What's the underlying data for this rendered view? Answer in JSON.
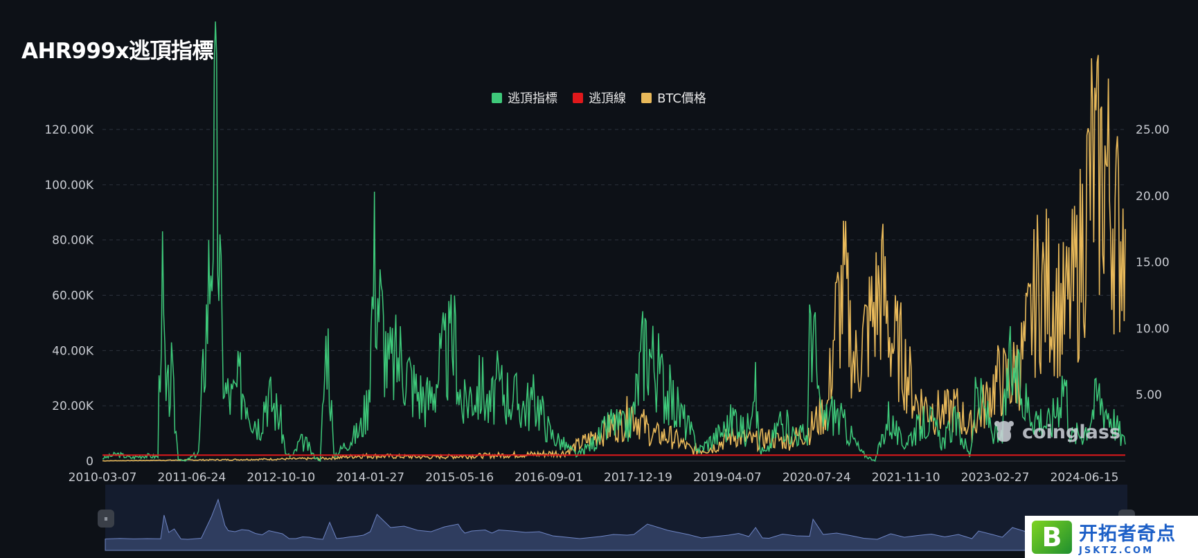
{
  "chart_data": {
    "type": "line",
    "title": "AHR999x逃頂指標",
    "legend": [
      {
        "name": "逃頂指標",
        "color": "#3ec97a"
      },
      {
        "name": "逃頂線",
        "color": "#e0181b"
      },
      {
        "name": "BTC價格",
        "color": "#e8b95a"
      }
    ],
    "legend_position": "top-center",
    "x_tick_labels": [
      "2010-03-07",
      "2011-06-24",
      "2012-10-10",
      "2014-01-27",
      "2015-05-16",
      "2016-09-01",
      "2017-12-19",
      "2019-04-07",
      "2020-07-24",
      "2021-11-10",
      "2023-02-27",
      "2024-06-15"
    ],
    "y_left_ticks": [
      "0",
      "20.00K",
      "40.00K",
      "60.00K",
      "80.00K",
      "100.00K",
      "120.00K"
    ],
    "y_left_range": [
      0,
      120000
    ],
    "y_right_ticks": [
      "5.00",
      "10.00",
      "15.00",
      "20.00",
      "25.00"
    ],
    "y_right_range": [
      0,
      25
    ],
    "grid": "horizontal-dashed",
    "x_range_years": [
      2010.18,
      2025.3
    ],
    "series": [
      {
        "name": "逃頂指標",
        "color": "#3ec97a",
        "x": [
          2010.18,
          2010.4,
          2010.6,
          2010.8,
          2011.0,
          2011.05,
          2011.12,
          2011.2,
          2011.3,
          2011.4,
          2011.5,
          2011.6,
          2011.75,
          2011.85,
          2011.95,
          2012.0,
          2012.1,
          2012.2,
          2012.3,
          2012.4,
          2012.5,
          2012.6,
          2012.8,
          2012.9,
          2013.0,
          2013.1,
          2013.2,
          2013.3,
          2013.4,
          2013.5,
          2013.6,
          2013.7,
          2013.8,
          2013.9,
          2014.0,
          2014.05,
          2014.1,
          2014.2,
          2014.4,
          2014.6,
          2014.8,
          2015.0,
          2015.2,
          2015.4,
          2015.45,
          2015.5,
          2015.6,
          2015.8,
          2015.9,
          2016.0,
          2016.2,
          2016.4,
          2016.6,
          2016.8,
          2017.0,
          2017.2,
          2017.5,
          2017.7,
          2017.9,
          2018.0,
          2018.2,
          2018.5,
          2018.8,
          2019.0,
          2019.2,
          2019.4,
          2019.55,
          2019.7,
          2019.8,
          2019.9,
          2020.0,
          2020.2,
          2020.4,
          2020.6,
          2020.65,
          2020.8,
          2021.0,
          2021.2,
          2021.4,
          2021.6,
          2021.8,
          2022.0,
          2022.2,
          2022.4,
          2022.6,
          2022.8,
          2023.0,
          2023.1,
          2023.3,
          2023.45,
          2023.6,
          2023.8,
          2024.0,
          2024.2,
          2024.4,
          2024.5,
          2024.7,
          2024.9,
          2025.1,
          2025.3
        ],
        "values": [
          1000,
          2500,
          1200,
          2000,
          1500,
          70000,
          20000,
          30000,
          1000,
          0,
          1500,
          3000,
          65000,
          115000,
          40000,
          25000,
          22000,
          28000,
          26000,
          17000,
          13000,
          25000,
          16000,
          2000,
          2000,
          7000,
          6000,
          2000,
          0,
          49000,
          2000,
          4000,
          7000,
          9000,
          12000,
          17000,
          22000,
          72000,
          34000,
          38000,
          26000,
          22000,
          36000,
          44000,
          28000,
          18000,
          24000,
          27000,
          18000,
          27000,
          24000,
          20000,
          22000,
          10000,
          6000,
          2000,
          8000,
          14000,
          12000,
          14000,
          44000,
          26000,
          14000,
          4000,
          8000,
          12000,
          17000,
          8000,
          34000,
          4000,
          3000,
          15000,
          10000,
          9000,
          58000,
          14000,
          18000,
          11000,
          3000,
          0,
          16000,
          6000,
          11000,
          15000,
          7000,
          14000,
          2000,
          24000,
          14000,
          6000,
          34000,
          22000,
          16000,
          13000,
          31000,
          9000,
          11000,
          24000,
          16000,
          6000
        ],
        "axis": "left"
      },
      {
        "name": "逃頂線",
        "color": "#e0181b",
        "x": [
          2010.18,
          2025.3
        ],
        "values": [
          0.45,
          0.45
        ],
        "axis": "right"
      },
      {
        "name": "BTC價格",
        "color": "#e8b95a",
        "x": [
          2010.18,
          2012.0,
          2013.5,
          2014.0,
          2015.0,
          2016.5,
          2017.0,
          2017.5,
          2017.9,
          2018.0,
          2018.3,
          2018.6,
          2018.9,
          2019.2,
          2019.5,
          2019.8,
          2020.0,
          2020.3,
          2020.6,
          2020.9,
          2021.0,
          2021.15,
          2021.3,
          2021.5,
          2021.7,
          2021.85,
          2022.0,
          2022.2,
          2022.4,
          2022.6,
          2022.8,
          2023.0,
          2023.2,
          2023.4,
          2023.6,
          2023.8,
          2024.0,
          2024.2,
          2024.4,
          2024.6,
          2024.8,
          2024.9,
          2025.0,
          2025.2,
          2025.3
        ],
        "values": [
          0.02,
          0.1,
          0.2,
          0.4,
          0.3,
          0.5,
          0.6,
          2.0,
          3.0,
          3.8,
          2.0,
          1.8,
          0.8,
          1.0,
          2.0,
          1.5,
          1.7,
          1.5,
          2.2,
          4.0,
          10.0,
          13.0,
          7.0,
          10.0,
          13.0,
          9.0,
          8.0,
          4.5,
          4.0,
          3.5,
          4.0,
          2.5,
          4.0,
          6.0,
          6.0,
          8.0,
          13.0,
          13.0,
          11.0,
          14.0,
          22.0,
          21.0,
          22.0,
          17.0,
          17.5
        ],
        "axis": "right"
      }
    ]
  },
  "watermark": {
    "text": "coinglass"
  },
  "badge": {
    "logo": "B",
    "name": "开拓者奇点",
    "url": "JSKTZ.COM"
  },
  "zoom": {
    "handle_left": "⏸",
    "handle_right": "⏸"
  }
}
